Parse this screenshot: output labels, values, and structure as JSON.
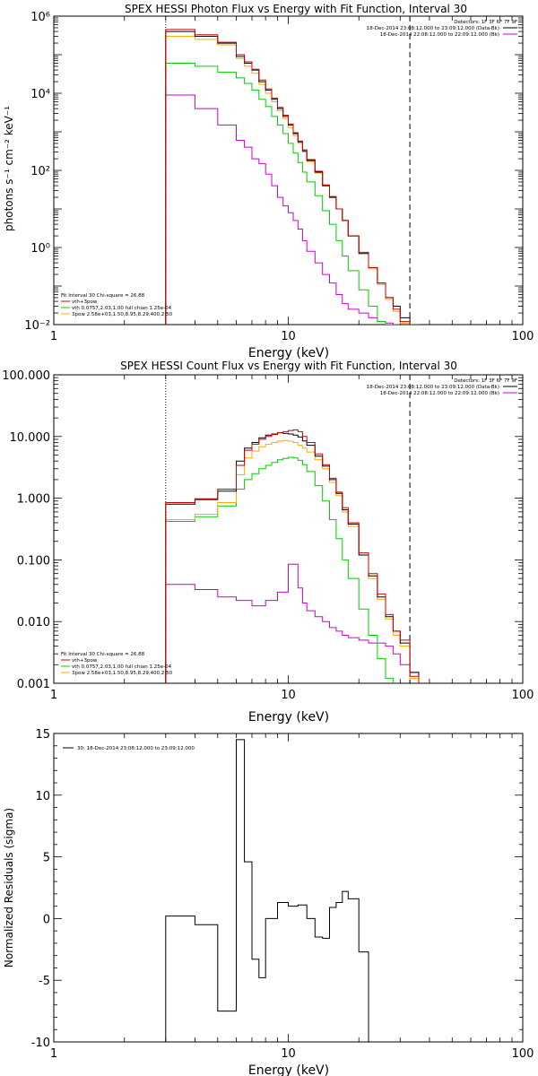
{
  "chart_data": [
    {
      "type": "line",
      "title": "SPEX HESSI Photon Flux vs Energy with Fit Function, Interval 30",
      "xlabel": "Energy (keV)",
      "ylabel": "photons s⁻¹ cm⁻² keV⁻¹",
      "xscale": "log",
      "yscale": "log",
      "xlim": [
        1,
        100
      ],
      "ylim": [
        0.01,
        1000000
      ],
      "xticks": [
        "1",
        "10",
        "100"
      ],
      "yticks": [
        {
          "v": 0.01,
          "label": "10⁻²"
        },
        {
          "v": 1,
          "label": "10⁰"
        },
        {
          "v": 100,
          "label": "10²"
        },
        {
          "v": 10000,
          "label": "10⁴"
        },
        {
          "v": 1000000,
          "label": "10⁶"
        }
      ],
      "legend_topright": [
        {
          "text": "Detectors: 1F 3F 6F 7F 9F",
          "color": ""
        },
        {
          "text": "18-Dec-2014 23:08:12.000 to 23:09:12.000 (Data-Bk)",
          "color": "#000000"
        },
        {
          "text": "18-Dec-2014 22:08:12.000 to 22:09:12.000 (Bk)",
          "color": "#cc00cc"
        }
      ],
      "legend_bottomleft": [
        {
          "text": "Fit Interval 30   Chi-square = 26.88",
          "color": ""
        },
        {
          "text": "vth+3pow",
          "color": "#cc0000"
        },
        {
          "text": "vth 0.0757,2.03,1.00  full chian 1.25e-04",
          "color": "#00cc00"
        },
        {
          "text": "3pow 2.58e+03,1.50,8.95,8.29,400,2.50",
          "color": "#ffaa00"
        }
      ],
      "vlines": [
        {
          "x": 3.0,
          "style": "dotted"
        },
        {
          "x": 33.0,
          "style": "dashed"
        }
      ],
      "edges": [
        3,
        3.5,
        4,
        4.5,
        5,
        5.5,
        6,
        6.5,
        7,
        7.5,
        8,
        8.5,
        9,
        9.5,
        10,
        10.5,
        11,
        11.5,
        12,
        13,
        14,
        15,
        16,
        17,
        18,
        20,
        22,
        24,
        26,
        28,
        30,
        33,
        36
      ],
      "series": [
        {
          "name": "Data-Bk",
          "color": "#000000",
          "values": [
            400000,
            400000,
            300000,
            300000,
            200000,
            200000,
            90000,
            60000,
            40000,
            20000,
            12000,
            7000,
            4000,
            2500,
            1500,
            900,
            550,
            320,
            180,
            90,
            40,
            20,
            10,
            5,
            2,
            0.7,
            0.3,
            0.12,
            0.05,
            0.03,
            0.015,
            0.008
          ]
        },
        {
          "name": "vth+3pow",
          "color": "#cc0000",
          "values": [
            450000,
            450000,
            330000,
            330000,
            210000,
            210000,
            100000,
            65000,
            42000,
            22000,
            13000,
            7500,
            4300,
            2700,
            1600,
            950,
            580,
            340,
            190,
            95,
            42,
            21,
            10,
            5,
            2,
            0.75,
            0.3,
            0.12,
            0.05,
            0.025,
            0.012,
            0.009
          ]
        },
        {
          "name": "vth",
          "color": "#00cc00",
          "values": [
            60000,
            60000,
            50000,
            50000,
            35000,
            35000,
            25000,
            18000,
            12000,
            7000,
            4500,
            2500,
            1500,
            900,
            500,
            280,
            160,
            90,
            50,
            22,
            9,
            4,
            1.5,
            0.6,
            0.25,
            0.08,
            0.03,
            0.012,
            0.0055,
            null,
            null,
            null
          ]
        },
        {
          "name": "3pow",
          "color": "#ffaa00",
          "values": [
            300000,
            300000,
            250000,
            250000,
            180000,
            180000,
            80000,
            50000,
            33000,
            17000,
            10000,
            6000,
            3500,
            2200,
            1300,
            800,
            500,
            300,
            170,
            85,
            40,
            20,
            10,
            5,
            2,
            0.7,
            0.28,
            0.11,
            0.045,
            0.022,
            0.011,
            0.009
          ]
        },
        {
          "name": "Bk",
          "color": "#cc00cc",
          "values": [
            9000,
            9000,
            4000,
            4000,
            1500,
            1500,
            600,
            400,
            200,
            150,
            80,
            40,
            20,
            12,
            8,
            5,
            3,
            1.5,
            0.8,
            0.4,
            0.2,
            0.12,
            0.06,
            0.035,
            0.025,
            0.02,
            0.015,
            0.012,
            0.011,
            0.01,
            null,
            null
          ]
        }
      ]
    },
    {
      "type": "line",
      "title": "SPEX HESSI Count Flux vs Energy with Fit Function, Interval 30",
      "xlabel": "Energy (keV)",
      "ylabel": "",
      "xscale": "log",
      "yscale": "log",
      "xlim": [
        1,
        100
      ],
      "ylim": [
        0.001,
        100
      ],
      "xticks": [
        "1",
        "10",
        "100"
      ],
      "yticks": [
        {
          "v": 0.001,
          "label": "0.001"
        },
        {
          "v": 0.01,
          "label": "0.010"
        },
        {
          "v": 0.1,
          "label": "0.100"
        },
        {
          "v": 1,
          "label": "1.000"
        },
        {
          "v": 10,
          "label": "10.000"
        },
        {
          "v": 100,
          "label": "100.000"
        }
      ],
      "legend_topright": [
        {
          "text": "Detectors: 1F 3F 6F 7F 9F",
          "color": ""
        },
        {
          "text": "18-Dec-2014 23:08:12.000 to 23:09:12.000 (Data-Bk)",
          "color": "#000000"
        },
        {
          "text": "18-Dec-2014 22:08:12.000 to 22:09:12.000 (Bk)",
          "color": "#cc00cc"
        }
      ],
      "legend_bottomleft": [
        {
          "text": "Fit Interval 30   Chi-square = 26.88",
          "color": ""
        },
        {
          "text": "vth+3pow",
          "color": "#cc0000"
        },
        {
          "text": "vth 0.0757,2.03,1.00  full chian 1.25e-04",
          "color": "#00cc00"
        },
        {
          "text": "3pow 2.58e+03,1.50,8.95,8.29,400,2.50",
          "color": "#ffaa00"
        }
      ],
      "vlines": [
        {
          "x": 3.0,
          "style": "dotted"
        },
        {
          "x": 33.0,
          "style": "dashed"
        }
      ],
      "edges": [
        3,
        3.5,
        4,
        4.5,
        5,
        5.5,
        6,
        6.5,
        7,
        7.5,
        8,
        8.5,
        9,
        9.5,
        10,
        10.5,
        11,
        11.5,
        12,
        13,
        14,
        15,
        16,
        17,
        18,
        20,
        22,
        24,
        26,
        28,
        30,
        33,
        36
      ],
      "series": [
        {
          "name": "Data-Bk",
          "color": "#000000",
          "values": [
            0.8,
            0.8,
            0.95,
            0.95,
            1.3,
            1.3,
            4.0,
            6.5,
            8.0,
            9.5,
            10.5,
            11.0,
            11.5,
            11.2,
            11.0,
            10.5,
            9.8,
            8.5,
            7.2,
            4.8,
            3.3,
            2.0,
            1.2,
            0.65,
            0.38,
            0.12,
            0.055,
            0.025,
            0.012,
            0.007,
            0.0045,
            0.0015
          ]
        },
        {
          "name": "vth+3pow",
          "color": "#cc0000",
          "values": [
            0.85,
            0.85,
            0.98,
            0.98,
            1.4,
            1.4,
            3.4,
            6.0,
            7.5,
            9.0,
            10.0,
            10.8,
            11.5,
            12.0,
            12.5,
            12.8,
            12.0,
            10.0,
            8.0,
            5.2,
            3.5,
            2.1,
            1.25,
            0.7,
            0.4,
            0.13,
            0.06,
            0.028,
            0.013,
            0.007,
            0.005,
            0.0013
          ]
        },
        {
          "name": "vth",
          "color": "#00cc00",
          "values": [
            0.42,
            0.42,
            0.5,
            0.5,
            0.75,
            0.75,
            1.4,
            2.0,
            2.5,
            3.0,
            3.4,
            3.8,
            4.2,
            4.4,
            4.6,
            4.5,
            4.1,
            3.5,
            2.7,
            1.6,
            0.9,
            0.45,
            0.22,
            0.1,
            0.05,
            0.016,
            0.006,
            0.0025,
            0.0012,
            null,
            null,
            null
          ]
        },
        {
          "name": "3pow",
          "color": "#ffaa00",
          "values": [
            0.45,
            0.45,
            0.55,
            0.55,
            0.85,
            0.85,
            2.4,
            4.5,
            5.8,
            6.8,
            7.5,
            8.0,
            8.4,
            8.6,
            8.4,
            8.0,
            7.2,
            6.5,
            5.6,
            4.2,
            3.0,
            1.8,
            1.1,
            0.6,
            0.35,
            0.12,
            0.05,
            0.023,
            0.011,
            0.006,
            0.004,
            0.0012
          ]
        },
        {
          "name": "Bk",
          "color": "#cc00cc",
          "values": [
            0.04,
            0.04,
            0.033,
            0.033,
            0.025,
            0.025,
            0.022,
            0.022,
            0.018,
            0.018,
            0.022,
            0.022,
            0.03,
            0.03,
            0.085,
            0.085,
            0.035,
            0.02,
            0.015,
            0.012,
            0.01,
            0.008,
            0.007,
            0.006,
            0.0055,
            0.005,
            0.0045,
            0.0045,
            0.004,
            0.003,
            0.002,
            0.0015
          ]
        }
      ]
    },
    {
      "type": "line",
      "title": "",
      "xlabel": "Energy (keV)",
      "ylabel": "Normalized Residuals (sigma)",
      "xscale": "log",
      "yscale": "linear",
      "xlim": [
        1,
        100
      ],
      "ylim": [
        -10,
        15
      ],
      "xticks": [
        "1",
        "10",
        "100"
      ],
      "yticks": [
        {
          "v": -10,
          "label": "-10"
        },
        {
          "v": -5,
          "label": "-5"
        },
        {
          "v": 0,
          "label": "0"
        },
        {
          "v": 5,
          "label": "5"
        },
        {
          "v": 10,
          "label": "10"
        },
        {
          "v": 15,
          "label": "15"
        }
      ],
      "legend_topleft": [
        {
          "text": "30: 18-Dec-2014 23:08:12.000 to 23:09:12.000",
          "color": "#000000"
        }
      ],
      "edges": [
        3,
        4,
        5,
        6,
        6.5,
        7,
        7.5,
        8,
        9,
        10,
        11,
        12,
        13,
        14,
        15,
        16,
        17,
        18,
        20,
        22,
        24,
        26,
        28,
        30,
        33
      ],
      "series": [
        {
          "name": "",
          "color": "#000000",
          "values": [
            0.2,
            -0.5,
            -7.5,
            14.5,
            4.6,
            -3.3,
            -4.8,
            0.0,
            1.3,
            1.0,
            1.1,
            0.0,
            -1.5,
            -1.6,
            0.9,
            1.3,
            2.2,
            1.6,
            -2.7,
            -10,
            -10,
            -10,
            -10,
            -10
          ]
        }
      ]
    }
  ]
}
